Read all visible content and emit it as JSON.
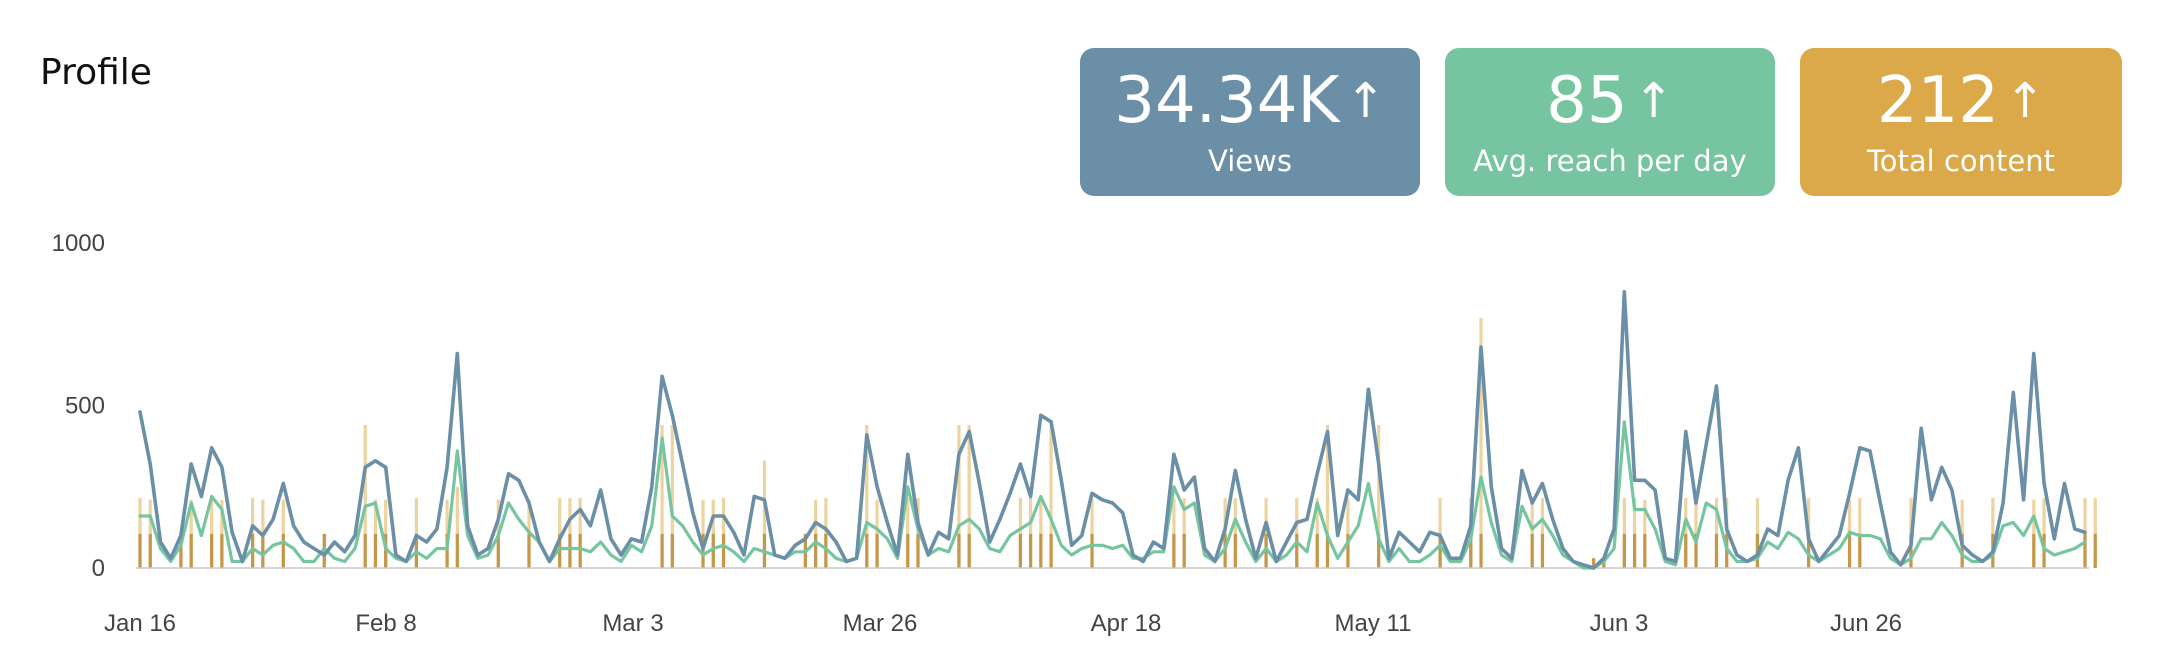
{
  "header": {
    "title": "Profile"
  },
  "cards": [
    {
      "value": "34.34K",
      "label": "Views",
      "color": "#6a8fa7"
    },
    {
      "value": "85",
      "label": "Avg. reach per day",
      "color": "#76c5a0"
    },
    {
      "value": "212",
      "label": "Total content",
      "color": "#dba94a"
    }
  ],
  "colors": {
    "views_line": "#6a8fa7",
    "reach_line": "#76c5a0",
    "content_bar_dark": "#c5974a",
    "content_bar_light": "#ecd3a0"
  },
  "chart_data": {
    "type": "line",
    "x_tick_labels": [
      "Jan 16",
      "Feb 8",
      "Mar 3",
      "Mar 26",
      "Apr 18",
      "May 11",
      "Jun 3",
      "Jun 26"
    ],
    "y_tick_labels": [
      "0",
      "500",
      "1000"
    ],
    "ylim": [
      0,
      1000
    ],
    "grid": false,
    "legend": "none",
    "series": [
      {
        "values": [
          480,
          320,
          80,
          30,
          100,
          320,
          220,
          370,
          310,
          110,
          20,
          130,
          100,
          150,
          260,
          130,
          80,
          60,
          40,
          80,
          50,
          100,
          310,
          330,
          310,
          40,
          20,
          100,
          80,
          120,
          310,
          660,
          130,
          40,
          60,
          150,
          290,
          270,
          200,
          80,
          20,
          90,
          150,
          180,
          130,
          240,
          90,
          40,
          90,
          80,
          250,
          590,
          470,
          320,
          170,
          60,
          160,
          160,
          110,
          40,
          220,
          210,
          40,
          30,
          70,
          90,
          140,
          120,
          80,
          20,
          30,
          410,
          250,
          140,
          40,
          350,
          140,
          40,
          110,
          90,
          350,
          420,
          260,
          80,
          150,
          230,
          320,
          220,
          470,
          450,
          270,
          70,
          100,
          230,
          210,
          200,
          170,
          40,
          20,
          80,
          60,
          350,
          240,
          280,
          60,
          20,
          120,
          300,
          150,
          30,
          140,
          20,
          80,
          140,
          150,
          290,
          420,
          100,
          240,
          210,
          550,
          320,
          30,
          110,
          80,
          50,
          110,
          100,
          30,
          30,
          130,
          680,
          250,
          60,
          30,
          300,
          200,
          260,
          150,
          60,
          20,
          10,
          0,
          30,
          120,
          850,
          270,
          270,
          240,
          30,
          20,
          420,
          200,
          380,
          560,
          120,
          40,
          20,
          40,
          120,
          100,
          270,
          370,
          90,
          20,
          60,
          100,
          230,
          370,
          360,
          200,
          50,
          10,
          70,
          430,
          210,
          310,
          240,
          70,
          40,
          20,
          50,
          200,
          540,
          210,
          660,
          260,
          90,
          260,
          120,
          110
        ]
      },
      {
        "values": [
          160,
          160,
          60,
          20,
          70,
          200,
          100,
          220,
          180,
          20,
          20,
          60,
          40,
          70,
          80,
          60,
          20,
          20,
          60,
          30,
          20,
          60,
          190,
          200,
          60,
          30,
          20,
          50,
          30,
          60,
          60,
          360,
          100,
          30,
          40,
          100,
          200,
          150,
          110,
          80,
          20,
          60,
          60,
          60,
          50,
          80,
          40,
          20,
          70,
          50,
          130,
          400,
          160,
          130,
          80,
          40,
          60,
          70,
          50,
          20,
          60,
          50,
          40,
          30,
          50,
          50,
          80,
          60,
          30,
          20,
          30,
          140,
          120,
          90,
          30,
          250,
          120,
          40,
          60,
          50,
          130,
          150,
          120,
          60,
          50,
          100,
          120,
          140,
          220,
          150,
          70,
          40,
          60,
          70,
          70,
          60,
          70,
          30,
          30,
          50,
          50,
          250,
          180,
          200,
          40,
          20,
          60,
          150,
          80,
          20,
          60,
          20,
          40,
          80,
          50,
          200,
          100,
          30,
          80,
          130,
          260,
          90,
          20,
          60,
          20,
          20,
          40,
          70,
          20,
          20,
          90,
          280,
          140,
          40,
          20,
          190,
          120,
          150,
          100,
          40,
          20,
          0,
          0,
          20,
          60,
          450,
          180,
          180,
          120,
          20,
          10,
          150,
          80,
          200,
          180,
          60,
          20,
          20,
          30,
          80,
          60,
          110,
          90,
          40,
          20,
          40,
          60,
          110,
          100,
          100,
          90,
          30,
          10,
          30,
          90,
          90,
          140,
          100,
          40,
          20,
          20,
          40,
          130,
          140,
          100,
          160,
          60,
          40,
          50,
          60,
          80
        ]
      }
    ],
    "bars": {
      "values": [
        215,
        210,
        0,
        0,
        110,
        210,
        0,
        210,
        210,
        0,
        0,
        215,
        210,
        0,
        210,
        0,
        0,
        0,
        105,
        0,
        0,
        0,
        440,
        210,
        210,
        0,
        0,
        215,
        0,
        0,
        210,
        250,
        0,
        0,
        0,
        210,
        0,
        0,
        210,
        0,
        0,
        215,
        215,
        215,
        0,
        0,
        0,
        0,
        0,
        0,
        0,
        440,
        440,
        0,
        0,
        210,
        210,
        215,
        0,
        0,
        0,
        330,
        0,
        0,
        0,
        105,
        210,
        215,
        0,
        0,
        0,
        440,
        210,
        0,
        0,
        215,
        215,
        0,
        0,
        0,
        440,
        440,
        0,
        0,
        0,
        0,
        215,
        215,
        215,
        440,
        0,
        0,
        0,
        215,
        0,
        0,
        0,
        0,
        0,
        0,
        0,
        215,
        215,
        0,
        0,
        0,
        215,
        215,
        0,
        0,
        215,
        0,
        0,
        215,
        0,
        215,
        440,
        0,
        215,
        0,
        0,
        440,
        0,
        0,
        0,
        0,
        0,
        215,
        0,
        0,
        215,
        770,
        0,
        0,
        0,
        0,
        215,
        215,
        0,
        0,
        0,
        0,
        30,
        30,
        0,
        215,
        215,
        210,
        0,
        0,
        0,
        215,
        215,
        0,
        215,
        215,
        0,
        0,
        215,
        0,
        0,
        0,
        0,
        215,
        0,
        0,
        0,
        210,
        215,
        0,
        0,
        0,
        0,
        215,
        0,
        0,
        0,
        0,
        210,
        0,
        0,
        215,
        0,
        0,
        0,
        210,
        215,
        0,
        0,
        0,
        215,
        215,
        0
      ]
    }
  }
}
